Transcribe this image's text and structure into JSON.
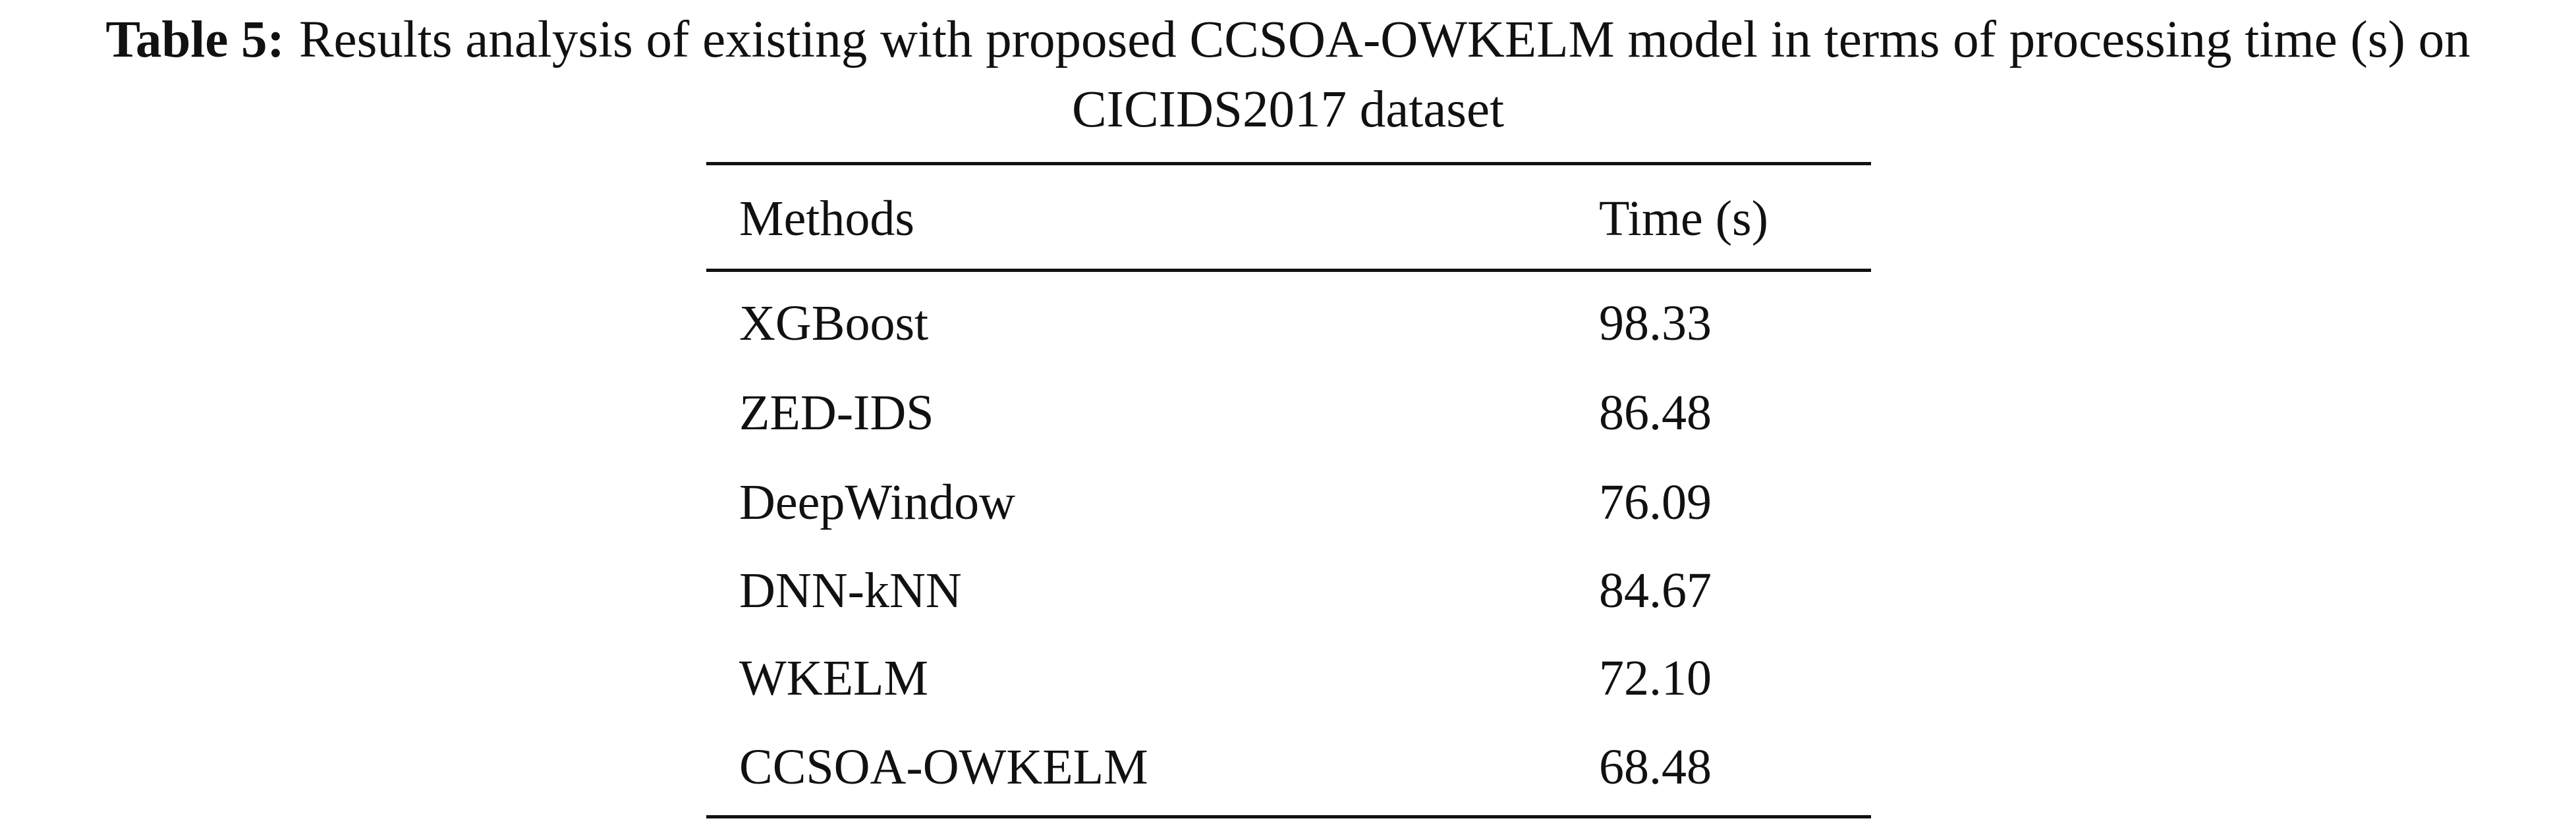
{
  "caption": {
    "label": "Table 5:",
    "text": "Results analysis of existing with proposed CCSOA-OWKELM model in terms of processing time (s) on CICIDS2017 dataset"
  },
  "table": {
    "header": [
      "Methods",
      "Time (s)"
    ],
    "rows": [
      [
        "XGBoost",
        "98.33"
      ],
      [
        "ZED-IDS",
        "86.48"
      ],
      [
        "DeepWindow",
        "76.09"
      ],
      [
        "DNN-kNN",
        "84.67"
      ],
      [
        "WKELM",
        "72.10"
      ],
      [
        "CCSOA-OWKELM",
        "68.48"
      ]
    ]
  }
}
